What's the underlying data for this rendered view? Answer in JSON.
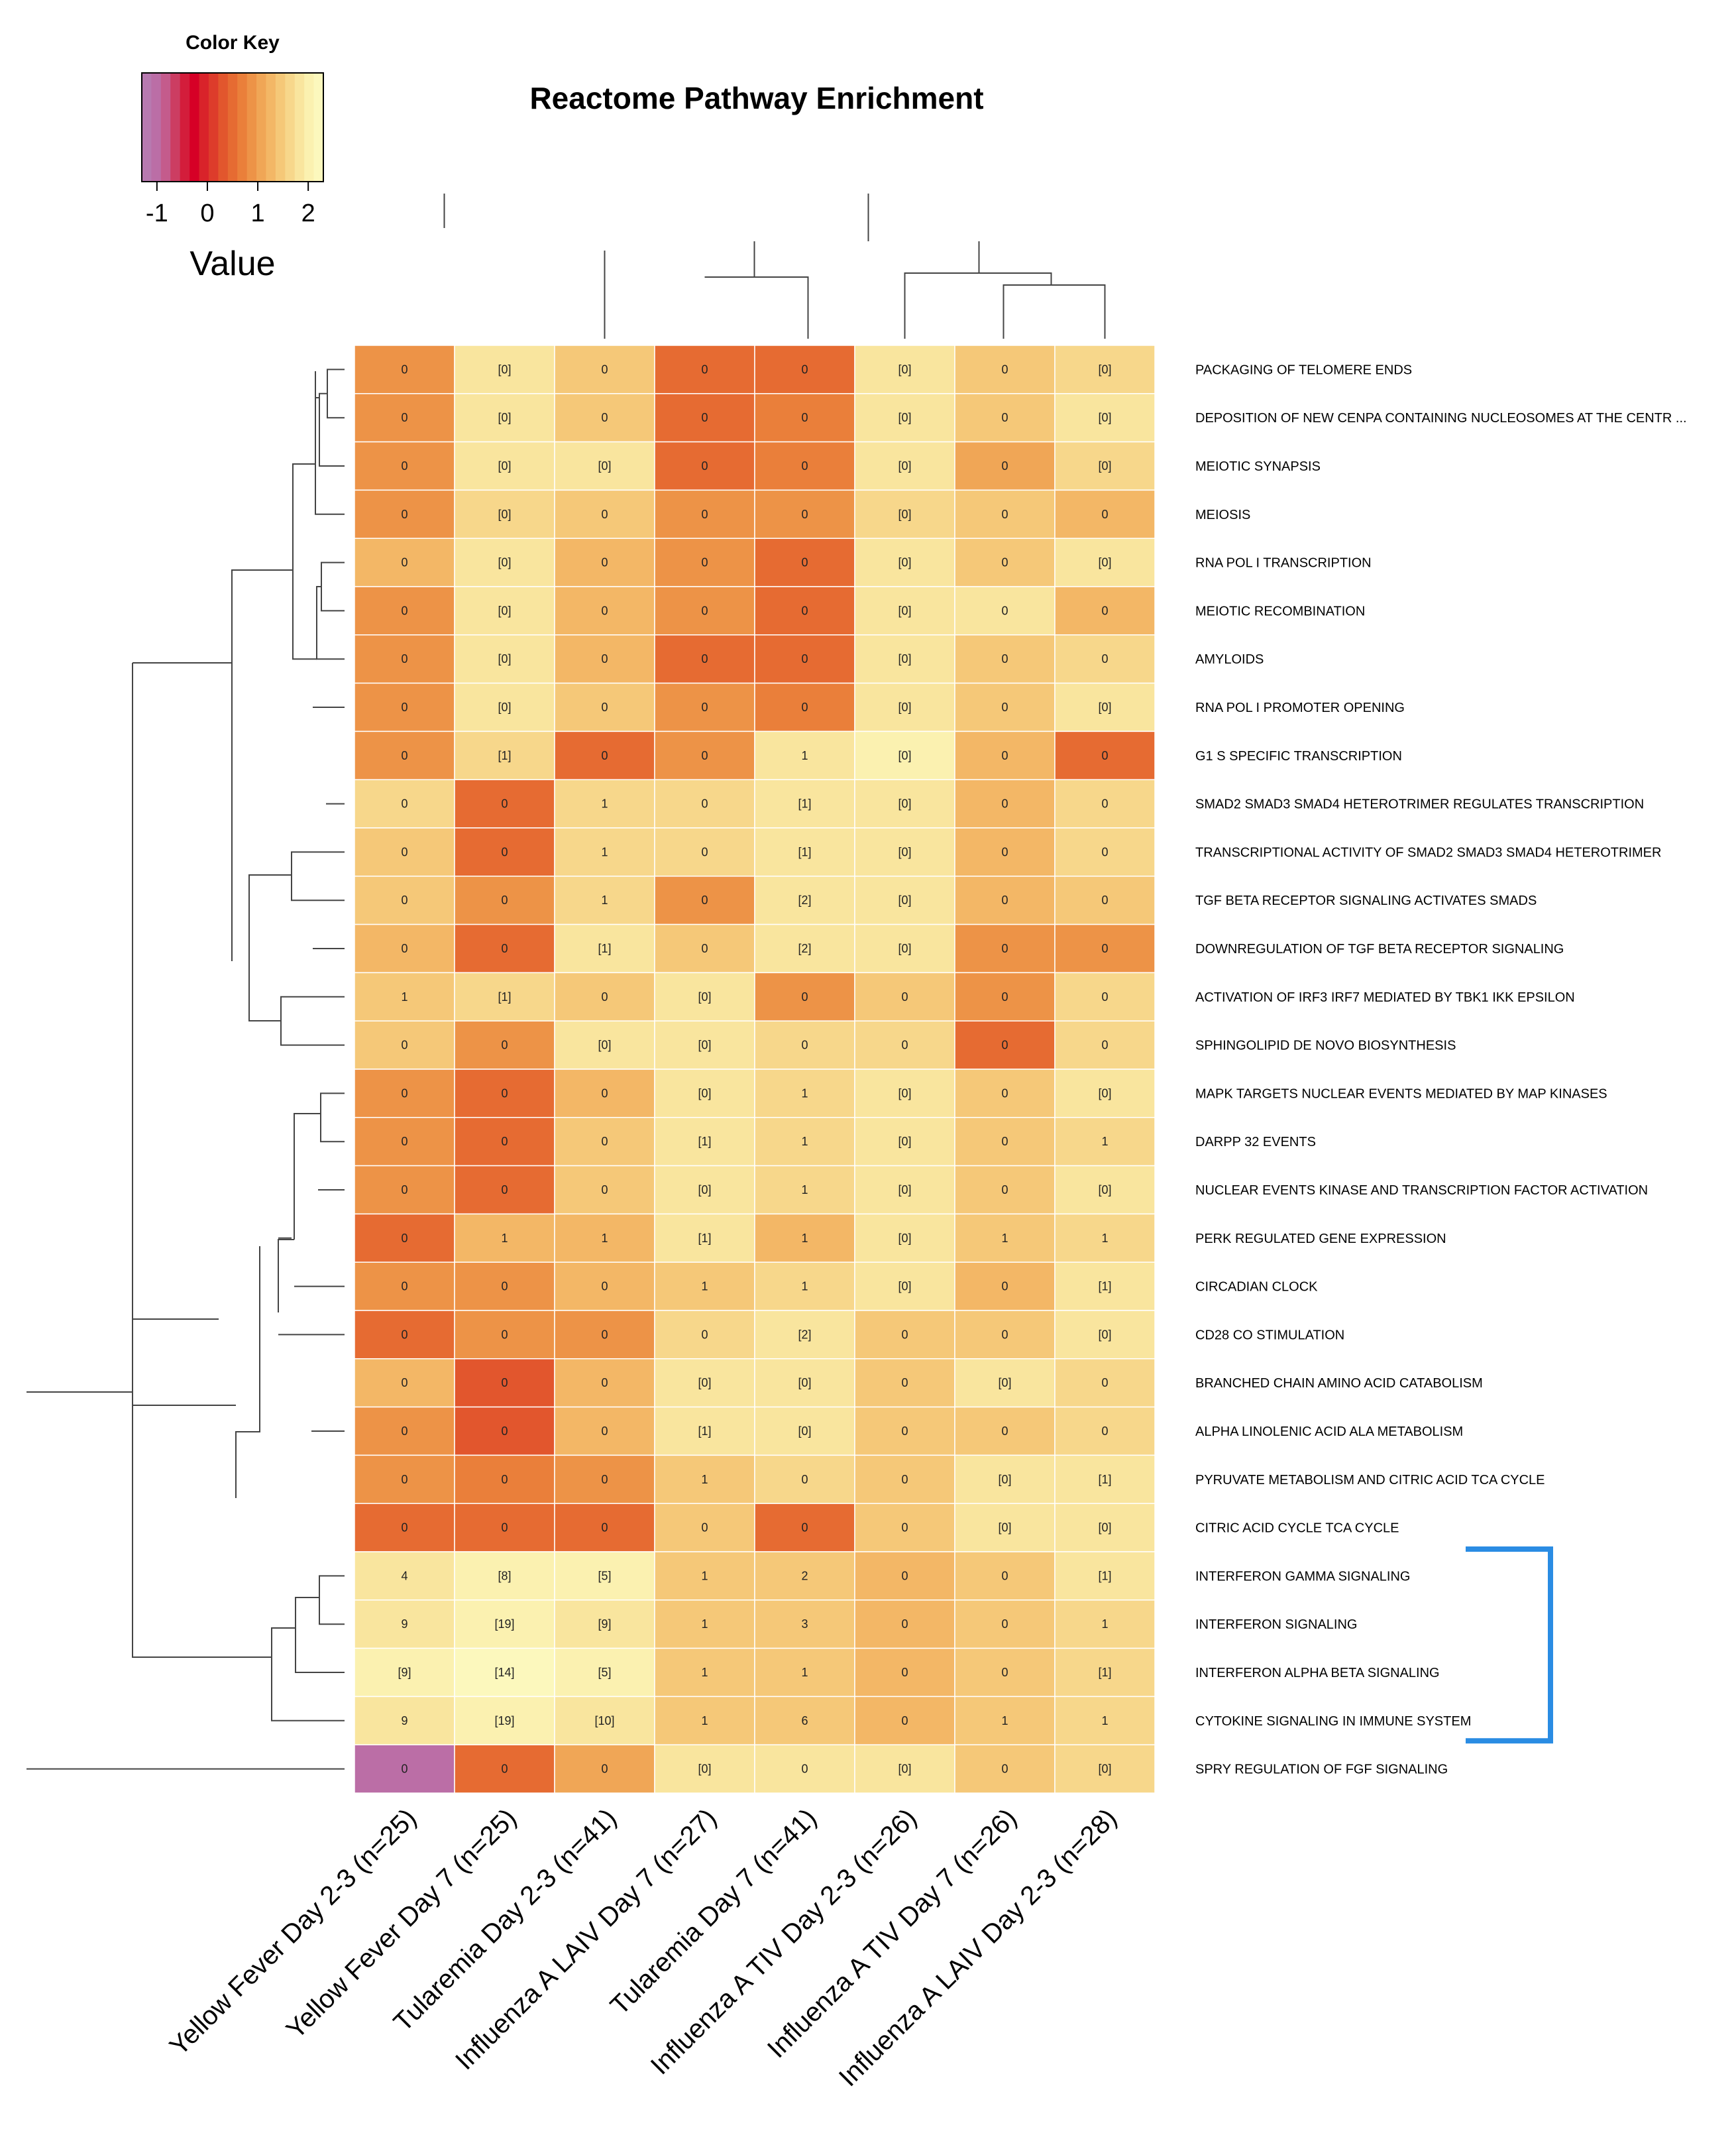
{
  "chart_data": {
    "type": "heatmap",
    "title": "Reactome Pathway Enrichment",
    "color_key": {
      "title": "Color Key",
      "label": "Value",
      "ticks": [
        "-1",
        "0",
        "1",
        "2"
      ],
      "tick_values": [
        -1,
        0,
        1,
        2
      ],
      "range": [
        -1.3,
        2.3
      ],
      "stops": [
        "#b77ab0",
        "#bb6ea6",
        "#c45b8c",
        "#cc3d62",
        "#d31d3b",
        "#d60026",
        "#d9232a",
        "#dd3c2b",
        "#e2562d",
        "#e66b32",
        "#ea7f3a",
        "#ed9347",
        "#f0a656",
        "#f3b766",
        "#f5c878",
        "#f7d78b",
        "#f9e59e",
        "#fbf1b0",
        "#fcf8bd"
      ]
    },
    "columns": [
      "Yellow Fever Day 2-3 (n=25)",
      "Yellow Fever Day 7 (n=25)",
      "Tularemia Day 2-3 (n=41)",
      "Influenza A LAIV Day 7 (n=27)",
      "Tularemia Day 7 (n=41)",
      "Influenza A TIV Day 2-3 (n=26)",
      "Influenza A TIV Day 7 (n=26)",
      "Influenza A LAIV Day 2-3 (n=28)"
    ],
    "rows": [
      "PACKAGING OF TELOMERE ENDS",
      "DEPOSITION OF NEW CENPA CONTAINING NUCLEOSOMES AT THE CENTR ...",
      "MEIOTIC SYNAPSIS",
      "MEIOSIS",
      "RNA POL I TRANSCRIPTION",
      "MEIOTIC RECOMBINATION",
      "AMYLOIDS",
      "RNA POL I PROMOTER OPENING",
      "G1 S SPECIFIC TRANSCRIPTION",
      "SMAD2 SMAD3 SMAD4 HETEROTRIMER REGULATES TRANSCRIPTION",
      "TRANSCRIPTIONAL ACTIVITY OF SMAD2 SMAD3 SMAD4 HETEROTRIMER",
      "TGF BETA RECEPTOR SIGNALING ACTIVATES SMADS",
      "DOWNREGULATION OF TGF BETA RECEPTOR SIGNALING",
      "ACTIVATION OF IRF3 IRF7 MEDIATED BY TBK1 IKK EPSILON",
      "SPHINGOLIPID DE NOVO BIOSYNTHESIS",
      "MAPK TARGETS NUCLEAR EVENTS MEDIATED BY MAP KINASES",
      "DARPP 32 EVENTS",
      "NUCLEAR EVENTS KINASE AND TRANSCRIPTION FACTOR ACTIVATION",
      "PERK REGULATED GENE EXPRESSION",
      "CIRCADIAN CLOCK",
      "CD28 CO STIMULATION",
      "BRANCHED CHAIN AMINO ACID CATABOLISM",
      "ALPHA LINOLENIC ACID ALA METABOLISM",
      "PYRUVATE METABOLISM AND CITRIC ACID TCA CYCLE",
      "CITRIC ACID CYCLE TCA CYCLE",
      "INTERFERON GAMMA SIGNALING",
      "INTERFERON SIGNALING",
      "INTERFERON ALPHA BETA SIGNALING",
      "CYTOKINE SIGNALING IN IMMUNE SYSTEM",
      "SPRY REGULATION OF FGF SIGNALING"
    ],
    "labels": [
      [
        "0",
        "[0]",
        "0",
        "0",
        "0",
        "[0]",
        "0",
        "[0]"
      ],
      [
        "0",
        "[0]",
        "0",
        "0",
        "0",
        "[0]",
        "0",
        "[0]"
      ],
      [
        "0",
        "[0]",
        "[0]",
        "0",
        "0",
        "[0]",
        "0",
        "[0]"
      ],
      [
        "0",
        "[0]",
        "0",
        "0",
        "0",
        "[0]",
        "0",
        "0"
      ],
      [
        "0",
        "[0]",
        "0",
        "0",
        "0",
        "[0]",
        "0",
        "[0]"
      ],
      [
        "0",
        "[0]",
        "0",
        "0",
        "0",
        "[0]",
        "0",
        "0"
      ],
      [
        "0",
        "[0]",
        "0",
        "0",
        "0",
        "[0]",
        "0",
        "0"
      ],
      [
        "0",
        "[0]",
        "0",
        "0",
        "0",
        "[0]",
        "0",
        "[0]"
      ],
      [
        "0",
        "[1]",
        "0",
        "0",
        "1",
        "[0]",
        "0",
        "0"
      ],
      [
        "0",
        "0",
        "1",
        "0",
        "[1]",
        "[0]",
        "0",
        "0"
      ],
      [
        "0",
        "0",
        "1",
        "0",
        "[1]",
        "[0]",
        "0",
        "0"
      ],
      [
        "0",
        "0",
        "1",
        "0",
        "[2]",
        "[0]",
        "0",
        "0"
      ],
      [
        "0",
        "0",
        "[1]",
        "0",
        "[2]",
        "[0]",
        "0",
        "0"
      ],
      [
        "1",
        "[1]",
        "0",
        "[0]",
        "0",
        "0",
        "0",
        "0"
      ],
      [
        "0",
        "0",
        "[0]",
        "[0]",
        "0",
        "0",
        "0",
        "0"
      ],
      [
        "0",
        "0",
        "0",
        "[0]",
        "1",
        "[0]",
        "0",
        "[0]"
      ],
      [
        "0",
        "0",
        "0",
        "[1]",
        "1",
        "[0]",
        "0",
        "1"
      ],
      [
        "0",
        "0",
        "0",
        "[0]",
        "1",
        "[0]",
        "0",
        "[0]"
      ],
      [
        "0",
        "1",
        "1",
        "[1]",
        "1",
        "[0]",
        "1",
        "1"
      ],
      [
        "0",
        "0",
        "0",
        "1",
        "1",
        "[0]",
        "0",
        "[1]"
      ],
      [
        "0",
        "0",
        "0",
        "0",
        "[2]",
        "0",
        "0",
        "[0]"
      ],
      [
        "0",
        "0",
        "0",
        "[0]",
        "[0]",
        "0",
        "[0]",
        "0"
      ],
      [
        "0",
        "0",
        "0",
        "[1]",
        "[0]",
        "0",
        "0",
        "0"
      ],
      [
        "0",
        "0",
        "0",
        "1",
        "0",
        "0",
        "[0]",
        "[1]"
      ],
      [
        "0",
        "0",
        "0",
        "0",
        "0",
        "0",
        "[0]",
        "[0]"
      ],
      [
        "4",
        "[8]",
        "[5]",
        "1",
        "2",
        "0",
        "0",
        "[1]"
      ],
      [
        "9",
        "[19]",
        "[9]",
        "1",
        "3",
        "0",
        "0",
        "1"
      ],
      [
        "[9]",
        "[14]",
        "[5]",
        "1",
        "1",
        "0",
        "0",
        "[1]"
      ],
      [
        "9",
        "[19]",
        "[10]",
        "1",
        "6",
        "0",
        "1",
        "1"
      ],
      [
        "0",
        "0",
        "0",
        "[0]",
        "0",
        "[0]",
        "0",
        "[0]"
      ]
    ],
    "values": [
      [
        0.85,
        1.75,
        1.45,
        0.55,
        0.55,
        1.75,
        1.5,
        1.7
      ],
      [
        0.85,
        1.75,
        1.45,
        0.55,
        0.75,
        1.75,
        1.5,
        1.75
      ],
      [
        0.85,
        1.75,
        1.8,
        0.55,
        0.75,
        1.75,
        1.1,
        1.7
      ],
      [
        0.85,
        1.55,
        1.45,
        0.85,
        0.8,
        1.55,
        1.5,
        1.2
      ],
      [
        1.2,
        1.75,
        1.2,
        0.85,
        0.5,
        1.75,
        1.45,
        1.75
      ],
      [
        0.85,
        1.75,
        1.2,
        0.85,
        0.5,
        1.75,
        1.85,
        1.2
      ],
      [
        0.85,
        1.75,
        1.2,
        0.55,
        0.5,
        1.75,
        1.5,
        1.55
      ],
      [
        0.85,
        1.75,
        1.45,
        0.85,
        0.6,
        1.75,
        1.5,
        1.75
      ],
      [
        0.85,
        1.55,
        0.55,
        0.8,
        1.75,
        2.0,
        1.2,
        0.45
      ],
      [
        1.6,
        0.55,
        1.55,
        1.55,
        1.75,
        1.75,
        1.2,
        1.55
      ],
      [
        1.4,
        0.55,
        1.55,
        1.55,
        1.75,
        1.75,
        1.2,
        1.55
      ],
      [
        1.5,
        0.85,
        1.55,
        0.85,
        1.75,
        1.75,
        1.2,
        1.4
      ],
      [
        1.2,
        0.55,
        1.75,
        1.4,
        1.75,
        1.75,
        0.85,
        0.85
      ],
      [
        1.4,
        1.55,
        1.45,
        1.75,
        0.9,
        1.4,
        0.85,
        1.55
      ],
      [
        1.4,
        0.85,
        1.75,
        1.75,
        1.55,
        1.55,
        0.55,
        1.55
      ],
      [
        0.85,
        0.55,
        1.2,
        1.75,
        1.55,
        1.75,
        1.5,
        1.75
      ],
      [
        0.85,
        0.55,
        1.45,
        1.75,
        1.55,
        1.75,
        1.5,
        1.55
      ],
      [
        0.85,
        0.55,
        1.45,
        1.75,
        1.55,
        1.75,
        1.5,
        1.75
      ],
      [
        0.55,
        1.2,
        1.2,
        1.75,
        1.2,
        1.75,
        1.45,
        1.55
      ],
      [
        0.85,
        0.85,
        1.2,
        1.4,
        1.55,
        1.75,
        1.2,
        1.75
      ],
      [
        0.55,
        0.85,
        0.85,
        1.55,
        1.75,
        1.4,
        1.5,
        1.75
      ],
      [
        1.2,
        0.35,
        1.2,
        1.75,
        1.8,
        1.4,
        1.75,
        1.55
      ],
      [
        0.85,
        0.35,
        1.2,
        1.75,
        1.8,
        1.4,
        1.5,
        1.55
      ],
      [
        0.85,
        0.75,
        0.8,
        1.4,
        1.55,
        1.4,
        1.75,
        1.75
      ],
      [
        0.55,
        0.55,
        0.55,
        1.4,
        0.55,
        1.4,
        1.75,
        1.75
      ],
      [
        1.75,
        1.95,
        1.95,
        1.4,
        1.4,
        1.2,
        1.4,
        1.75
      ],
      [
        1.75,
        2.0,
        1.85,
        1.4,
        1.4,
        1.2,
        1.4,
        1.55
      ],
      [
        2.1,
        2.2,
        1.95,
        1.4,
        1.4,
        1.2,
        1.4,
        1.55
      ],
      [
        1.75,
        1.95,
        1.85,
        1.4,
        1.45,
        1.2,
        1.4,
        1.55
      ],
      [
        -1.0,
        0.55,
        1.1,
        1.75,
        1.75,
        1.75,
        1.5,
        1.7
      ]
    ],
    "grid": false,
    "legend": "top-left",
    "highlight": {
      "rows": [
        "INTERFERON GAMMA SIGNALING",
        "INTERFERON SIGNALING",
        "INTERFERON ALPHA BETA SIGNALING",
        "CYTOKINE SIGNALING IN IMMUNE SYSTEM"
      ],
      "color": "#2a8ce3"
    },
    "dendrogram_color": "#444444",
    "cell_border_color": "#ffffff"
  }
}
